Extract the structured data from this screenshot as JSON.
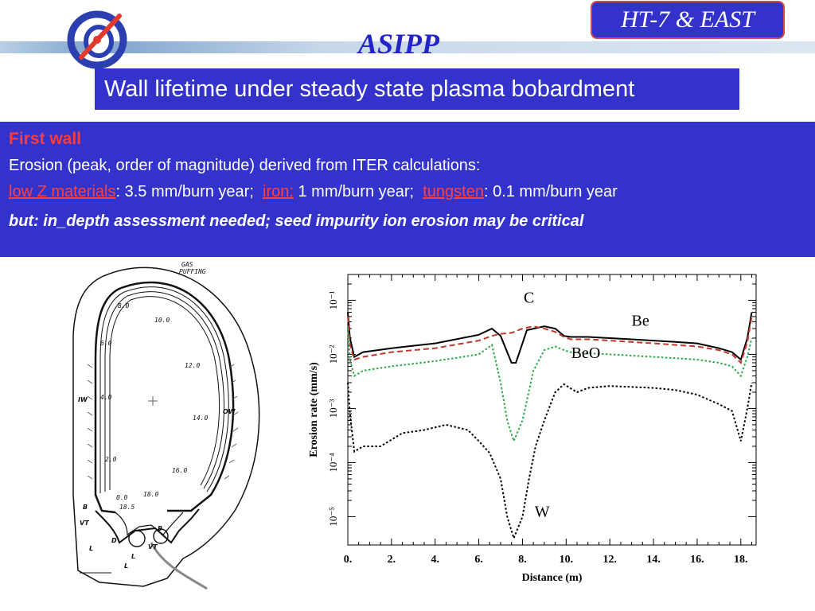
{
  "header": {
    "org": "ASIPP",
    "badge": "HT-7 & EAST",
    "title": "Wall lifetime under steady state plasma bobardment"
  },
  "content": {
    "heading": "First wall",
    "line1": "Erosion (peak, order of magnitude) derived from ITER calculations:",
    "low_z_label": "low Z materials",
    "low_z_value": ": 3.5 mm/burn year;",
    "iron_label": "iron:",
    "iron_value": " 1 mm/burn year;",
    "tungsten_label": "tungsten",
    "tungsten_value": ": 0.1 mm/burn year",
    "critical": "but: in_depth assessment needed; seed impurity ion erosion may be critical"
  },
  "cross_section": {
    "gas_label": "GAS",
    "gas_label2": "PUFFING",
    "positions": [
      "8.0",
      "10.0",
      "6.0",
      "12.0",
      "4.0",
      "14.0",
      "2.0",
      "16.0",
      "0.0",
      "18.0",
      "18.5"
    ],
    "region_labels": [
      "IW",
      "OW",
      "B",
      "B",
      "VT",
      "VT",
      "L",
      "L",
      "D",
      "L"
    ]
  },
  "colors": {
    "accent_blue": "#3333cc",
    "heading_red": "#ff3b3b",
    "C": "#000000",
    "Be": "#c0392b",
    "BeO": "#2ea84a",
    "W": "#000000"
  },
  "chart_data": {
    "type": "line",
    "xlabel": "Distance (m)",
    "ylabel": "Erosion rate  (mm/s)",
    "yscale": "log",
    "xlim": [
      0,
      18.7
    ],
    "ylim": [
      3e-06,
      0.3
    ],
    "xticks": [
      "0.",
      "2.",
      "4.",
      "6.",
      "8.",
      "10.",
      "12.",
      "14.",
      "16.",
      "18."
    ],
    "yticks": [
      "10⁻¹",
      "10⁻²",
      "10⁻³",
      "10⁻⁴",
      "10⁻⁵"
    ],
    "grid": false,
    "series": [
      {
        "name": "C",
        "style": "solid",
        "x": [
          0.0,
          0.1,
          0.3,
          0.7,
          2.0,
          4.0,
          6.0,
          6.6,
          7.0,
          7.5,
          7.7,
          8.2,
          9.0,
          9.5,
          9.9,
          10.2,
          11.0,
          12.0,
          13.0,
          14.0,
          15.0,
          16.0,
          17.0,
          17.6,
          18.0,
          18.3,
          18.5
        ],
        "y": [
          0.06,
          0.02,
          0.009,
          0.011,
          0.013,
          0.016,
          0.023,
          0.03,
          0.022,
          0.007,
          0.007,
          0.028,
          0.033,
          0.03,
          0.022,
          0.021,
          0.021,
          0.02,
          0.019,
          0.018,
          0.017,
          0.016,
          0.013,
          0.011,
          0.008,
          0.02,
          0.06
        ]
      },
      {
        "name": "Be",
        "style": "dashed",
        "x": [
          0.0,
          0.1,
          0.3,
          0.7,
          2.0,
          4.0,
          6.0,
          6.6,
          7.0,
          7.5,
          8.0,
          8.5,
          9.0,
          9.5,
          9.9,
          10.2,
          11.0,
          12.0,
          13.0,
          14.0,
          15.0,
          16.0,
          17.0,
          17.6,
          18.0,
          18.3,
          18.5
        ],
        "y": [
          0.05,
          0.015,
          0.008,
          0.009,
          0.011,
          0.013,
          0.018,
          0.022,
          0.024,
          0.025,
          0.03,
          0.033,
          0.03,
          0.026,
          0.021,
          0.019,
          0.019,
          0.018,
          0.017,
          0.016,
          0.015,
          0.014,
          0.012,
          0.01,
          0.007,
          0.017,
          0.05
        ]
      },
      {
        "name": "BeO",
        "style": "dotted",
        "x": [
          0.0,
          0.1,
          0.3,
          0.7,
          2.0,
          4.0,
          6.0,
          6.6,
          7.0,
          7.3,
          7.6,
          8.0,
          8.5,
          9.0,
          9.5,
          9.9,
          10.2,
          11.0,
          12.0,
          13.0,
          14.0,
          15.0,
          16.0,
          17.0,
          17.6,
          18.0,
          18.3,
          18.5
        ],
        "y": [
          0.03,
          0.008,
          0.004,
          0.005,
          0.006,
          0.0075,
          0.01,
          0.015,
          0.003,
          0.0006,
          0.00025,
          0.0006,
          0.005,
          0.012,
          0.014,
          0.012,
          0.011,
          0.0105,
          0.01,
          0.0095,
          0.009,
          0.0085,
          0.008,
          0.007,
          0.006,
          0.004,
          0.009,
          0.02
        ]
      },
      {
        "name": "W",
        "style": "dotted",
        "x": [
          0.0,
          0.1,
          0.3,
          0.7,
          1.5,
          2.5,
          3.5,
          4.5,
          5.5,
          6.0,
          6.5,
          7.0,
          7.3,
          7.6,
          8.0,
          8.3,
          8.6,
          9.0,
          9.5,
          9.9,
          10.5,
          11.0,
          12.0,
          13.0,
          14.0,
          15.0,
          16.0,
          17.0,
          17.6,
          18.0,
          18.3,
          18.5
        ],
        "y": [
          0.003,
          0.0008,
          0.00016,
          0.0002,
          0.0002,
          0.00035,
          0.0004,
          0.0005,
          0.0004,
          0.00025,
          0.00015,
          5e-05,
          1e-05,
          4e-06,
          1e-05,
          5e-05,
          0.0002,
          0.0006,
          0.002,
          0.0028,
          0.002,
          0.0024,
          0.0026,
          0.0025,
          0.0024,
          0.0022,
          0.0018,
          0.0012,
          0.0009,
          0.00025,
          0.001,
          0.003
        ]
      }
    ],
    "annotations": [
      {
        "text": "C",
        "x": 8.3,
        "y": 0.09
      },
      {
        "text": "Be",
        "x": 13.4,
        "y": 0.034
      },
      {
        "text": "BeO",
        "x": 10.9,
        "y": 0.0085
      },
      {
        "text": "W",
        "x": 8.9,
        "y": 1e-05
      }
    ]
  }
}
